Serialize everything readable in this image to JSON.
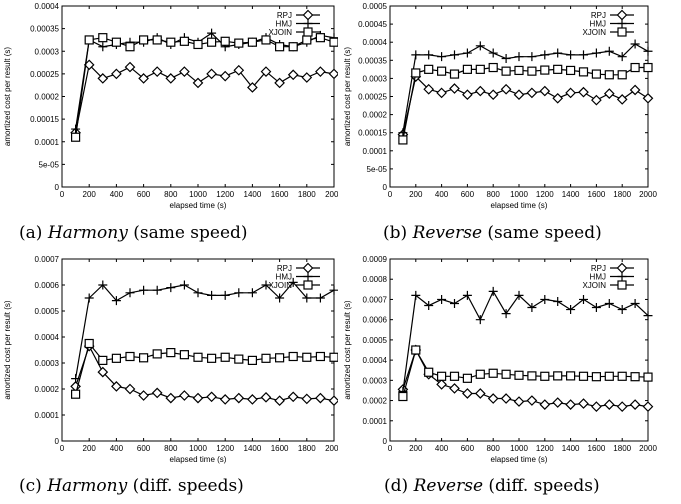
{
  "chart_data": [
    {
      "type": "line",
      "caption": {
        "label": "(a)",
        "name": "Harmony",
        "detail": "(same speed)"
      },
      "xlabel": "elapsed time (s)",
      "ylabel": "amortized cost per result (s)",
      "xlim": [
        0,
        2000
      ],
      "ylim": [
        0,
        0.0004
      ],
      "xticks": [
        0,
        200,
        400,
        600,
        800,
        1000,
        1200,
        1400,
        1600,
        1800,
        2000
      ],
      "yticks": [
        0,
        5e-05,
        0.0001,
        0.00015,
        0.0002,
        0.00025,
        0.0003,
        0.00035,
        0.0004
      ],
      "ytick_labels": [
        "0",
        "5e-05",
        "0.0001",
        "0.00015",
        "0.0002",
        "0.00025",
        "0.0003",
        "0.00035",
        "0.0004"
      ],
      "legend_position": "top-right",
      "x": [
        100,
        200,
        300,
        400,
        500,
        600,
        700,
        800,
        900,
        1000,
        1100,
        1200,
        1300,
        1400,
        1500,
        1600,
        1700,
        1800,
        1900,
        2000
      ],
      "series": [
        {
          "name": "RPJ",
          "marker": "diamond",
          "values": [
            0.00012,
            0.00027,
            0.00024,
            0.00025,
            0.000265,
            0.00024,
            0.000255,
            0.00024,
            0.000255,
            0.00023,
            0.00025,
            0.000245,
            0.000258,
            0.00022,
            0.000255,
            0.00023,
            0.000248,
            0.000242,
            0.000255,
            0.00025
          ]
        },
        {
          "name": "HMJ",
          "marker": "plus",
          "values": [
            0.000128,
            0.000325,
            0.00031,
            0.000315,
            0.00032,
            0.00032,
            0.00033,
            0.000315,
            0.00033,
            0.00032,
            0.00034,
            0.00031,
            0.000315,
            0.00032,
            0.00033,
            0.000315,
            0.00031,
            0.00032,
            0.000335,
            0.00033
          ]
        },
        {
          "name": "XJOIN",
          "marker": "square",
          "values": [
            0.00011,
            0.000325,
            0.00033,
            0.00032,
            0.00031,
            0.000325,
            0.000325,
            0.00032,
            0.000322,
            0.000315,
            0.00032,
            0.000322,
            0.000318,
            0.00032,
            0.000325,
            0.00031,
            0.00031,
            0.000325,
            0.00033,
            0.00032
          ]
        }
      ]
    },
    {
      "type": "line",
      "caption": {
        "label": "(b)",
        "name": "Reverse",
        "detail": "(same speed)"
      },
      "xlabel": "elapsed time (s)",
      "ylabel": "amortized cost per result (s)",
      "xlim": [
        0,
        2000
      ],
      "ylim": [
        0,
        0.0005
      ],
      "xticks": [
        0,
        200,
        400,
        600,
        800,
        1000,
        1200,
        1400,
        1600,
        1800,
        2000
      ],
      "yticks": [
        0,
        5e-05,
        0.0001,
        0.00015,
        0.0002,
        0.00025,
        0.0003,
        0.00035,
        0.0004,
        0.00045,
        0.0005
      ],
      "ytick_labels": [
        "0",
        "5e-05",
        "0.0001",
        "0.00015",
        "0.0002",
        "0.00025",
        "0.0003",
        "0.00035",
        "0.0004",
        "0.00045",
        "0.0005"
      ],
      "legend_position": "top-right",
      "x": [
        100,
        200,
        300,
        400,
        500,
        600,
        700,
        800,
        900,
        1000,
        1100,
        1200,
        1300,
        1400,
        1500,
        1600,
        1700,
        1800,
        1900,
        2000
      ],
      "series": [
        {
          "name": "RPJ",
          "marker": "diamond",
          "values": [
            0.000145,
            0.000305,
            0.00027,
            0.00026,
            0.000272,
            0.000255,
            0.000265,
            0.000255,
            0.00027,
            0.000255,
            0.00026,
            0.000265,
            0.000245,
            0.00026,
            0.000262,
            0.00024,
            0.000258,
            0.000242,
            0.000268,
            0.000245
          ]
        },
        {
          "name": "HMJ",
          "marker": "plus",
          "values": [
            0.00015,
            0.000365,
            0.000365,
            0.00036,
            0.000365,
            0.00037,
            0.00039,
            0.00037,
            0.000355,
            0.00036,
            0.00036,
            0.000365,
            0.00037,
            0.000365,
            0.000365,
            0.00037,
            0.000375,
            0.00036,
            0.000395,
            0.000375
          ]
        },
        {
          "name": "XJOIN",
          "marker": "square",
          "values": [
            0.00013,
            0.000315,
            0.000325,
            0.00032,
            0.000312,
            0.000325,
            0.000325,
            0.00033,
            0.00032,
            0.000322,
            0.00032,
            0.000323,
            0.000325,
            0.000322,
            0.000318,
            0.000312,
            0.00031,
            0.00031,
            0.00033,
            0.00033
          ]
        }
      ]
    },
    {
      "type": "line",
      "caption": {
        "label": "(c)",
        "name": "Harmony",
        "detail": "(diff. speeds)"
      },
      "xlabel": "elapsed time (s)",
      "ylabel": "amortized cost per result (s)",
      "xlim": [
        0,
        2000
      ],
      "ylim": [
        0,
        0.0007
      ],
      "xticks": [
        0,
        200,
        400,
        600,
        800,
        1000,
        1200,
        1400,
        1600,
        1800,
        2000
      ],
      "yticks": [
        0,
        0.0001,
        0.0002,
        0.0003,
        0.0004,
        0.0005,
        0.0006,
        0.0007
      ],
      "ytick_labels": [
        "0",
        "0.0001",
        "0.0002",
        "0.0003",
        "0.0004",
        "0.0005",
        "0.0006",
        "0.0007"
      ],
      "legend_position": "top-right",
      "x": [
        100,
        200,
        300,
        400,
        500,
        600,
        700,
        800,
        900,
        1000,
        1100,
        1200,
        1300,
        1400,
        1500,
        1600,
        1700,
        1800,
        1900,
        2000
      ],
      "series": [
        {
          "name": "RPJ",
          "marker": "diamond",
          "values": [
            0.00021,
            0.000365,
            0.000265,
            0.00021,
            0.0002,
            0.000175,
            0.000185,
            0.000165,
            0.000175,
            0.000165,
            0.00017,
            0.00016,
            0.000165,
            0.00016,
            0.000168,
            0.000155,
            0.00017,
            0.000162,
            0.000165,
            0.000155
          ]
        },
        {
          "name": "HMJ",
          "marker": "plus",
          "values": [
            0.00024,
            0.00055,
            0.0006,
            0.00054,
            0.00057,
            0.00058,
            0.00058,
            0.00059,
            0.0006,
            0.00057,
            0.00056,
            0.00056,
            0.00057,
            0.00057,
            0.0006,
            0.00055,
            0.00061,
            0.00055,
            0.00055,
            0.00058
          ]
        },
        {
          "name": "XJOIN",
          "marker": "square",
          "values": [
            0.00018,
            0.000375,
            0.00031,
            0.000318,
            0.000325,
            0.00032,
            0.000335,
            0.00034,
            0.000332,
            0.000322,
            0.000318,
            0.000322,
            0.000315,
            0.00031,
            0.000318,
            0.00032,
            0.000325,
            0.000322,
            0.000325,
            0.000322
          ]
        }
      ]
    },
    {
      "type": "line",
      "caption": {
        "label": "(d)",
        "name": "Reverse",
        "detail": "(diff. speeds)"
      },
      "xlabel": "elapsed time (s)",
      "ylabel": "amortized cost per result (s)",
      "xlim": [
        0,
        2000
      ],
      "ylim": [
        0,
        0.0009
      ],
      "xticks": [
        0,
        200,
        400,
        600,
        800,
        1000,
        1200,
        1400,
        1600,
        1800,
        2000
      ],
      "yticks": [
        0,
        0.0001,
        0.0002,
        0.0003,
        0.0004,
        0.0005,
        0.0006,
        0.0007,
        0.0008,
        0.0009
      ],
      "ytick_labels": [
        "0",
        "0.0001",
        "0.0002",
        "0.0003",
        "0.0004",
        "0.0005",
        "0.0006",
        "0.0007",
        "0.0008",
        "0.0009"
      ],
      "legend_position": "top-right",
      "x": [
        100,
        200,
        300,
        400,
        500,
        600,
        700,
        800,
        900,
        1000,
        1100,
        1200,
        1300,
        1400,
        1500,
        1600,
        1700,
        1800,
        1900,
        2000
      ],
      "series": [
        {
          "name": "RPJ",
          "marker": "diamond",
          "values": [
            0.000255,
            0.00045,
            0.00033,
            0.00028,
            0.00026,
            0.000235,
            0.000235,
            0.00021,
            0.00021,
            0.000195,
            0.0002,
            0.00018,
            0.00019,
            0.00018,
            0.000185,
            0.00017,
            0.00018,
            0.00017,
            0.00018,
            0.00017
          ]
        },
        {
          "name": "HMJ",
          "marker": "plus",
          "values": [
            0.000245,
            0.00072,
            0.00067,
            0.0007,
            0.00068,
            0.00072,
            0.0006,
            0.00074,
            0.00063,
            0.00072,
            0.00066,
            0.0007,
            0.00069,
            0.00065,
            0.0007,
            0.00066,
            0.00068,
            0.00065,
            0.00068,
            0.00062
          ]
        },
        {
          "name": "XJOIN",
          "marker": "square",
          "values": [
            0.00022,
            0.00045,
            0.00034,
            0.00032,
            0.00032,
            0.00031,
            0.00033,
            0.000335,
            0.00033,
            0.000325,
            0.000322,
            0.00032,
            0.000322,
            0.000322,
            0.00032,
            0.000318,
            0.00032,
            0.00032,
            0.000318,
            0.000316
          ]
        }
      ]
    }
  ]
}
